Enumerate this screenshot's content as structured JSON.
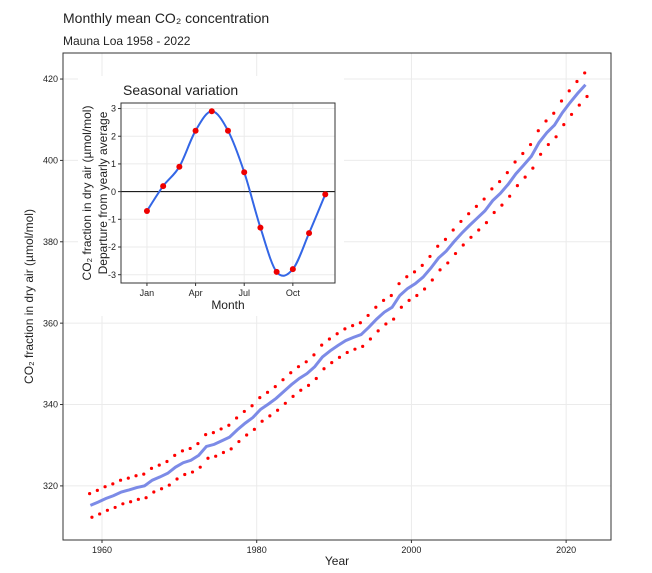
{
  "chart_data": [
    {
      "type": "scatter",
      "title": "Monthly mean CO₂ concentration",
      "subtitle": "Mauna Loa 1958 - 2022",
      "xlabel": "Year",
      "ylabel": "CO₂ fraction in dry air (µmol/mol)",
      "xlim": [
        1954.96,
        2025.8
      ],
      "ylim": [
        306.7,
        426.4
      ],
      "xticks": [
        1960,
        1980,
        2000,
        2020
      ],
      "yticks": [
        320,
        340,
        360,
        380,
        400,
        420
      ],
      "grid": true,
      "series": [
        {
          "mark": "point",
          "color": "#ff0000",
          "x": [
            1958.4,
            1958.7,
            1959.4,
            1959.7,
            1960.4,
            1960.7,
            1961.4,
            1961.7,
            1962.4,
            1962.7,
            1963.4,
            1963.7,
            1964.4,
            1964.7,
            1965.4,
            1965.7,
            1966.4,
            1966.7,
            1967.4,
            1967.7,
            1968.4,
            1968.7,
            1969.4,
            1969.7,
            1970.4,
            1970.7,
            1971.4,
            1971.7,
            1972.4,
            1972.7,
            1973.4,
            1973.7,
            1974.4,
            1974.7,
            1975.4,
            1975.7,
            1976.4,
            1976.7,
            1977.4,
            1977.7,
            1978.4,
            1978.7,
            1979.4,
            1979.7,
            1980.4,
            1980.7,
            1981.4,
            1981.7,
            1982.4,
            1982.7,
            1983.4,
            1983.7,
            1984.4,
            1984.7,
            1985.4,
            1985.7,
            1986.4,
            1986.7,
            1987.4,
            1987.7,
            1988.4,
            1988.7,
            1989.4,
            1989.7,
            1990.4,
            1990.7,
            1991.4,
            1991.7,
            1992.4,
            1992.7,
            1993.4,
            1993.7,
            1994.4,
            1994.7,
            1995.4,
            1995.7,
            1996.4,
            1996.7,
            1997.4,
            1997.7,
            1998.4,
            1998.7,
            1999.4,
            1999.7,
            2000.4,
            2000.7,
            2001.4,
            2001.7,
            2002.4,
            2002.7,
            2003.4,
            2003.7,
            2004.4,
            2004.7,
            2005.4,
            2005.7,
            2006.4,
            2006.7,
            2007.4,
            2007.7,
            2008.4,
            2008.7,
            2009.4,
            2009.7,
            2010.4,
            2010.7,
            2011.4,
            2011.7,
            2012.4,
            2012.7,
            2013.4,
            2013.7,
            2014.4,
            2014.7,
            2015.4,
            2015.7,
            2016.4,
            2016.7,
            2017.4,
            2017.7,
            2018.4,
            2018.7,
            2019.4,
            2019.7,
            2020.4,
            2020.7,
            2021.4,
            2021.7,
            2022.4,
            2022.7
          ],
          "values": [
            318.1,
            312.3,
            318.9,
            313.1,
            319.8,
            314.0,
            320.5,
            314.7,
            321.4,
            315.6,
            321.9,
            316.1,
            322.5,
            316.7,
            322.9,
            317.1,
            324.3,
            318.5,
            325.1,
            319.3,
            326.0,
            320.2,
            327.5,
            321.7,
            328.6,
            322.8,
            329.2,
            323.4,
            330.4,
            324.6,
            332.6,
            326.8,
            333.1,
            327.3,
            334.0,
            328.2,
            334.9,
            329.1,
            336.7,
            330.9,
            338.3,
            332.5,
            339.7,
            333.9,
            341.7,
            335.9,
            343.0,
            337.2,
            344.4,
            338.6,
            346.1,
            340.3,
            347.8,
            342.0,
            349.3,
            343.5,
            350.5,
            344.7,
            352.2,
            346.4,
            354.6,
            348.8,
            356.1,
            350.3,
            357.4,
            351.6,
            358.6,
            352.8,
            359.4,
            353.6,
            360.1,
            354.3,
            361.9,
            356.1,
            363.9,
            358.1,
            365.6,
            359.8,
            366.8,
            361.0,
            369.7,
            363.9,
            371.4,
            365.6,
            372.6,
            366.8,
            374.2,
            368.4,
            376.4,
            370.6,
            378.9,
            373.1,
            380.6,
            374.8,
            382.9,
            377.1,
            385.0,
            379.2,
            386.9,
            381.1,
            388.7,
            382.9,
            390.5,
            384.7,
            393.0,
            387.2,
            394.8,
            389.0,
            397.0,
            391.2,
            399.6,
            393.8,
            401.7,
            395.9,
            403.9,
            398.1,
            407.3,
            401.5,
            409.7,
            403.9,
            411.6,
            405.8,
            414.6,
            408.8,
            417.1,
            411.3,
            419.4,
            413.6,
            421.5,
            415.7
          ]
        },
        {
          "mark": "line",
          "color": "#5b6ee1",
          "x": [
            1958.5,
            1959.5,
            1960.5,
            1961.5,
            1962.5,
            1963.5,
            1964.5,
            1965.5,
            1966.5,
            1967.5,
            1968.5,
            1969.5,
            1970.5,
            1971.5,
            1972.5,
            1973.5,
            1974.5,
            1975.5,
            1976.5,
            1977.5,
            1978.5,
            1979.5,
            1980.5,
            1981.5,
            1982.5,
            1983.5,
            1984.5,
            1985.5,
            1986.5,
            1987.5,
            1988.5,
            1989.5,
            1990.5,
            1991.5,
            1992.5,
            1993.5,
            1994.5,
            1995.5,
            1996.5,
            1997.5,
            1998.5,
            1999.5,
            2000.5,
            2001.5,
            2002.5,
            2003.5,
            2004.5,
            2005.5,
            2006.5,
            2007.5,
            2008.5,
            2009.5,
            2010.5,
            2011.5,
            2012.5,
            2013.5,
            2014.5,
            2015.5,
            2016.5,
            2017.5,
            2018.5,
            2019.5,
            2020.5,
            2021.5,
            2022.5
          ],
          "values": [
            315.2,
            316.0,
            316.9,
            317.6,
            318.5,
            319.0,
            319.6,
            320.0,
            321.4,
            322.2,
            323.1,
            324.6,
            325.7,
            326.3,
            327.5,
            329.7,
            330.2,
            331.1,
            332.0,
            333.8,
            335.4,
            336.8,
            338.8,
            340.1,
            341.5,
            343.2,
            344.9,
            346.4,
            347.6,
            349.3,
            351.7,
            353.2,
            354.5,
            355.7,
            356.5,
            357.2,
            359.0,
            361.0,
            362.7,
            363.9,
            366.8,
            368.5,
            369.7,
            371.3,
            373.5,
            376.0,
            377.7,
            380.0,
            382.1,
            384.0,
            385.8,
            387.6,
            390.1,
            391.9,
            394.1,
            396.7,
            398.8,
            401.0,
            404.4,
            406.8,
            408.7,
            411.7,
            414.2,
            416.5,
            418.6
          ]
        }
      ]
    },
    {
      "type": "line",
      "title": "Seasonal variation",
      "xlabel": "Month",
      "ylabel": [
        "CO₂ fraction in dry air (µmol/mol)",
        "Departure from yearly average"
      ],
      "xlim": [
        -0.6,
        12.6
      ],
      "ylim": [
        -3.3,
        3.2
      ],
      "xticks": [
        {
          "value": 1,
          "label": "Jan"
        },
        {
          "value": 4,
          "label": "Apr"
        },
        {
          "value": 7,
          "label": "Jul"
        },
        {
          "value": 10,
          "label": "Oct"
        }
      ],
      "yticks": [
        -3,
        -2,
        -1,
        0,
        1,
        2,
        3
      ],
      "grid": true,
      "hline": 0,
      "series": [
        {
          "color": "#3366e6",
          "point_color": "#ee0000",
          "x": [
            1,
            2,
            3,
            4,
            5,
            6,
            7,
            8,
            9,
            10,
            11,
            12
          ],
          "values": [
            -0.7,
            0.2,
            0.9,
            2.2,
            2.9,
            2.2,
            0.7,
            -1.3,
            -2.9,
            -2.8,
            -1.5,
            -0.1
          ]
        }
      ]
    }
  ]
}
